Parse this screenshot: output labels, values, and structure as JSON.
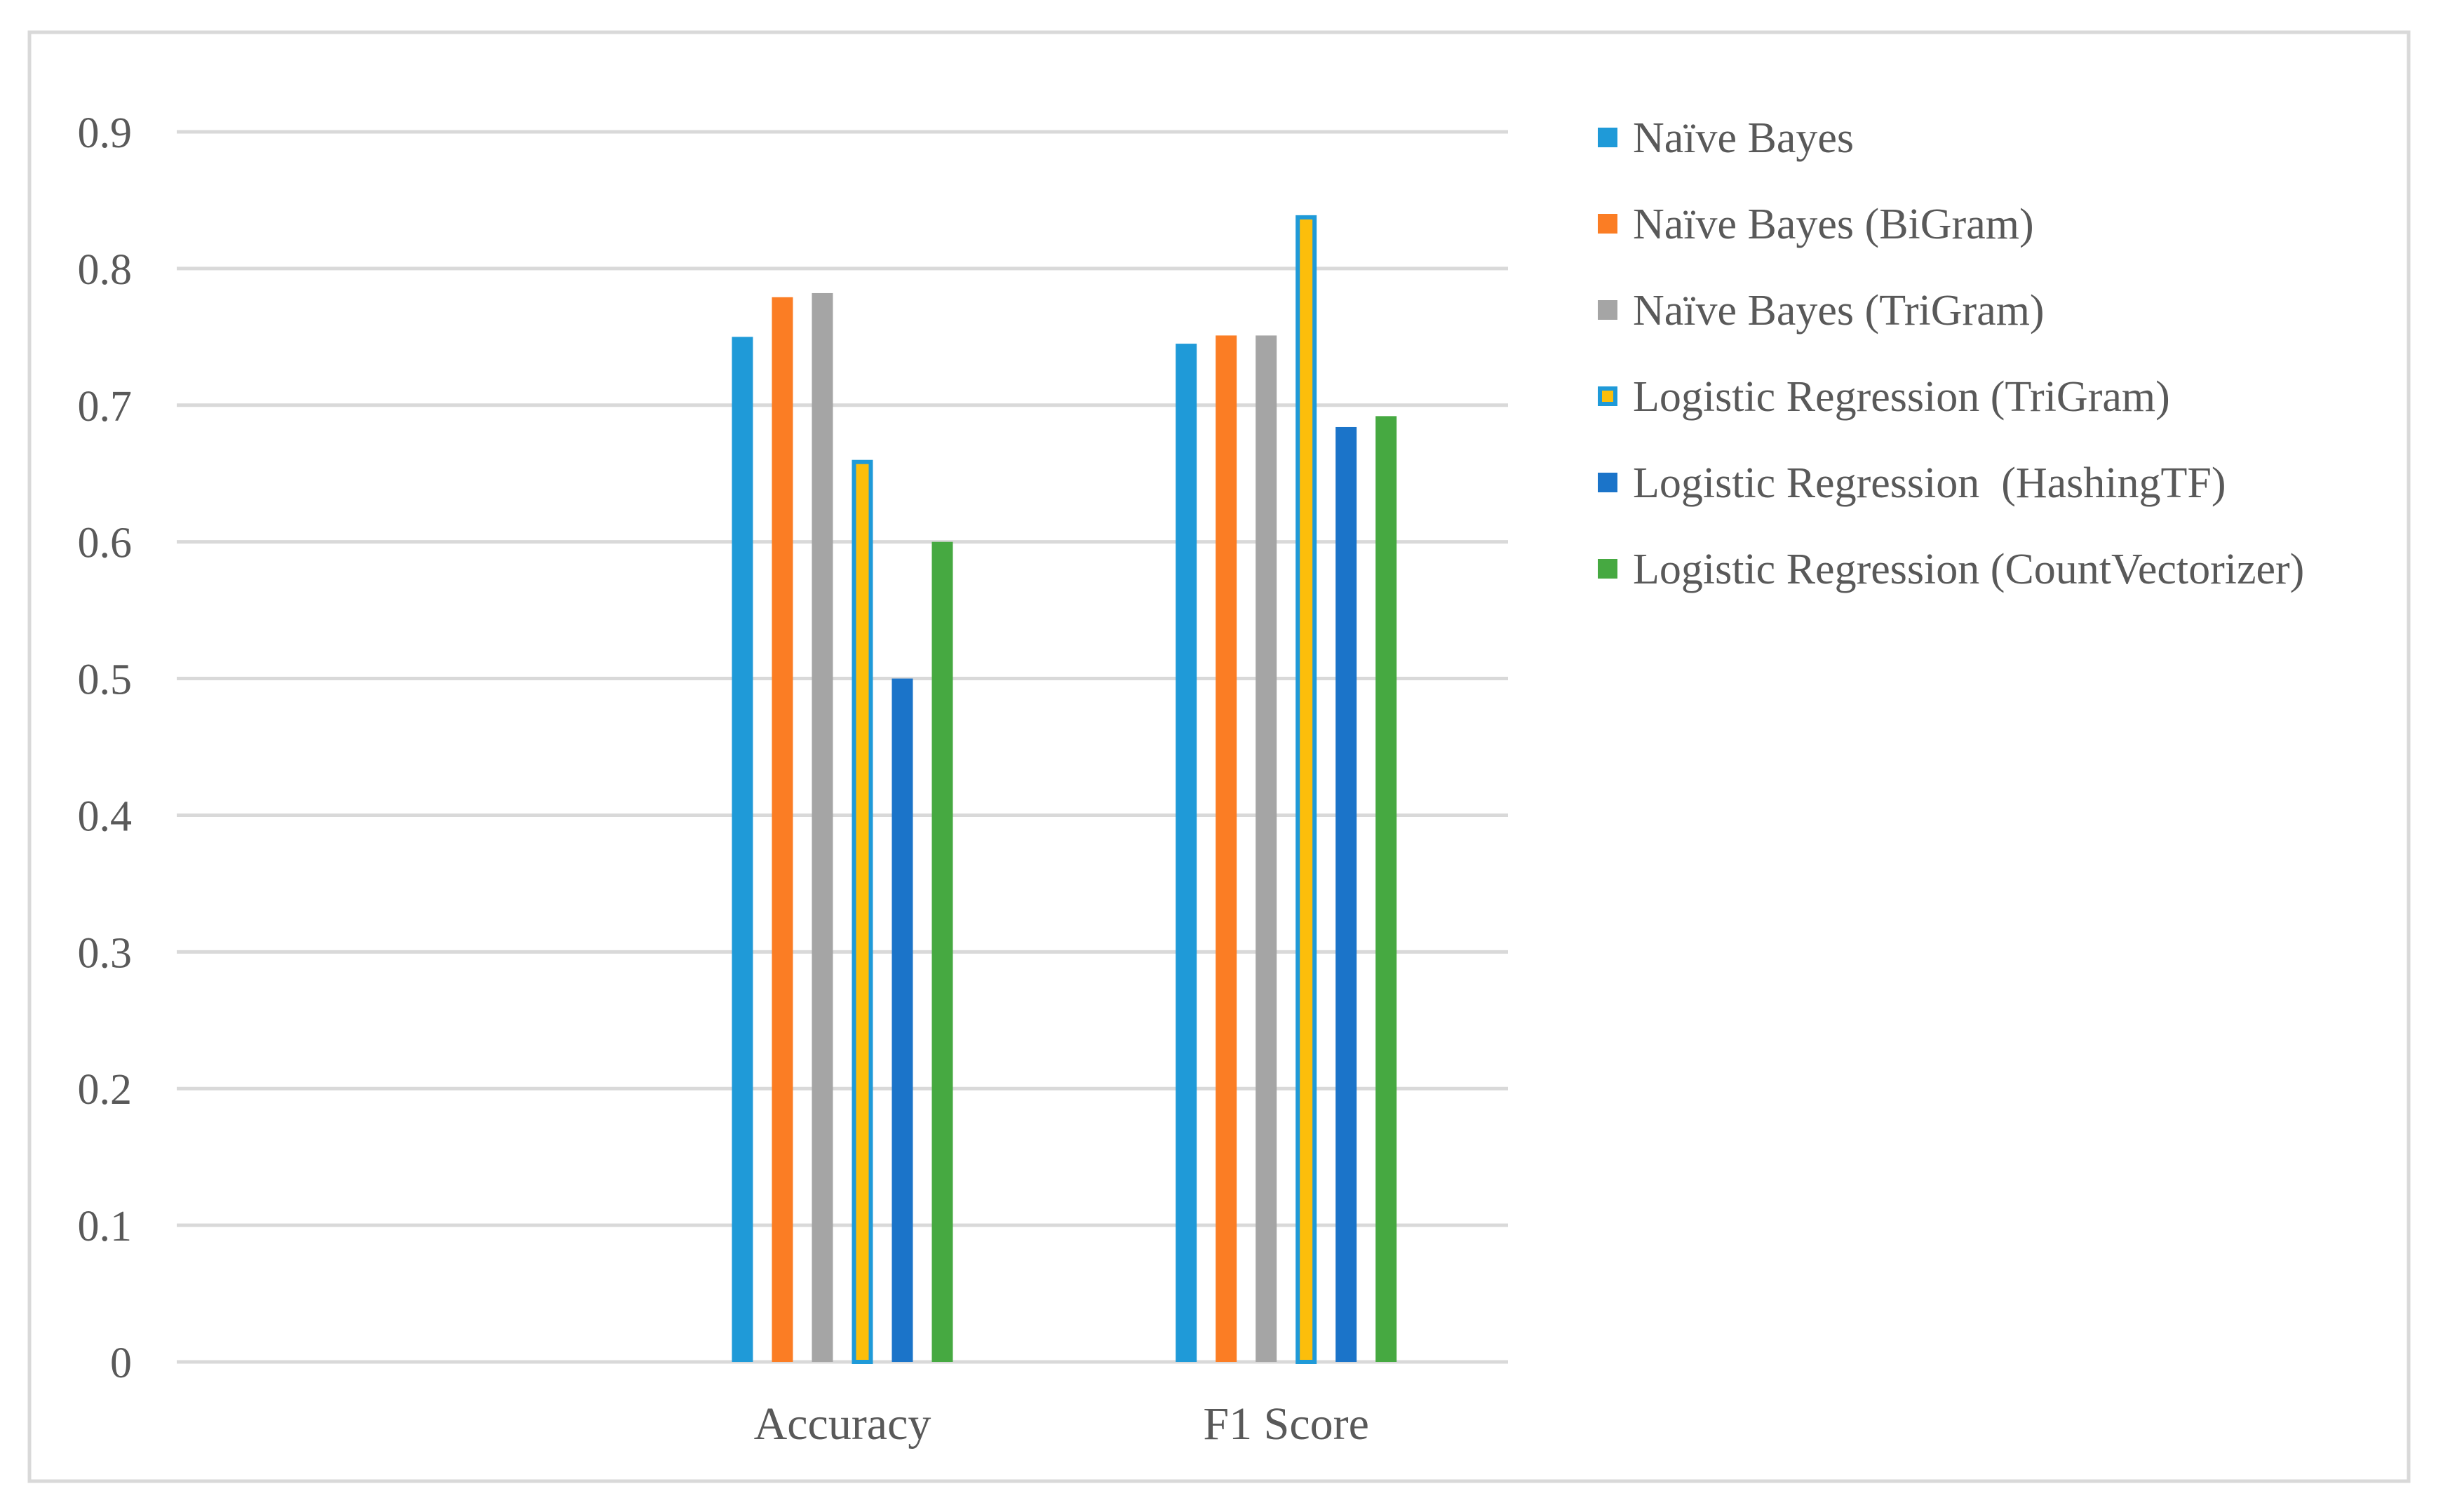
{
  "colors": {
    "frame": "#d9d9d9",
    "grid": "#d9d9d9",
    "text": "#595959",
    "bar_outline": "#1f9ad8"
  },
  "chart_data": {
    "type": "bar",
    "title": "",
    "xlabel": "",
    "ylabel": "",
    "ylim": [
      0,
      0.9
    ],
    "yticks": [
      "0",
      "0.1",
      "0.2",
      "0.3",
      "0.4",
      "0.5",
      "0.6",
      "0.7",
      "0.8",
      "0.9"
    ],
    "grid": true,
    "legend_position": "right",
    "categories": [
      "",
      "Accuracy",
      "F1 Score"
    ],
    "series": [
      {
        "name": "Naïve Bayes",
        "color": "#1f9ad8",
        "values": [
          null,
          0.75,
          0.745
        ]
      },
      {
        "name": "Naïve Bayes (BiGram)",
        "color": "#fb7d24",
        "values": [
          null,
          0.779,
          0.751
        ]
      },
      {
        "name": "Naïve Bayes (TriGram)",
        "color": "#a5a5a5",
        "values": [
          null,
          0.782,
          0.751
        ]
      },
      {
        "name": "Logistic Regression (TriGram)",
        "color": "#fcbe0b",
        "outline": "#1f9ad8",
        "values": [
          null,
          0.66,
          0.839
        ]
      },
      {
        "name": "Logistic Regression  (HashingTF)",
        "color": "#1b74c9",
        "values": [
          null,
          0.5,
          0.684
        ]
      },
      {
        "name": "Logistic Regression (CountVectorizer)",
        "color": "#46a941",
        "values": [
          null,
          0.6,
          0.692
        ]
      }
    ]
  }
}
